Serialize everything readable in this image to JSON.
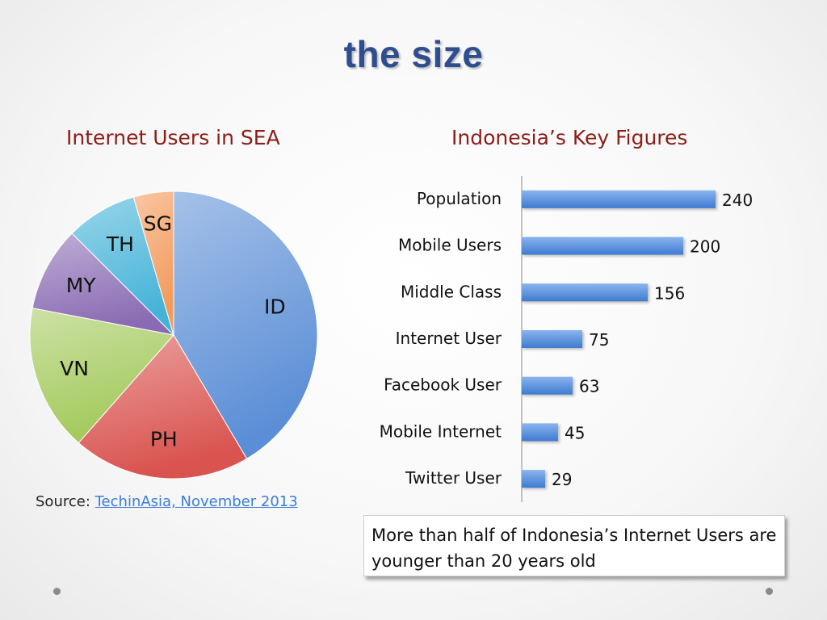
{
  "slide": {
    "title": "the size",
    "source_label": "Source:",
    "source_link": "TechinAsia, November 2013",
    "note": "More than half of Indonesia’s Internet Users are younger than 20 years old"
  },
  "chart_data": [
    {
      "type": "pie",
      "title": "Internet Users in SEA",
      "labels": [
        "ID",
        "PH",
        "VN",
        "MY",
        "TH",
        "SG"
      ],
      "values": [
        41.5,
        20,
        16.5,
        9.5,
        8,
        4.5
      ],
      "colors": [
        "#5b8ed6",
        "#d9534f",
        "#a3c95b",
        "#8a6bb3",
        "#45b3d8",
        "#f3995a"
      ]
    },
    {
      "type": "bar",
      "orientation": "horizontal",
      "title": "Indonesia’s Key Figures",
      "categories": [
        "Population",
        "Mobile Users",
        "Middle Class",
        "Internet User",
        "Facebook User",
        "Mobile Internet",
        "Twitter User"
      ],
      "values": [
        240,
        200,
        156,
        75,
        63,
        45,
        29
      ],
      "color": "#4a86d6"
    }
  ]
}
